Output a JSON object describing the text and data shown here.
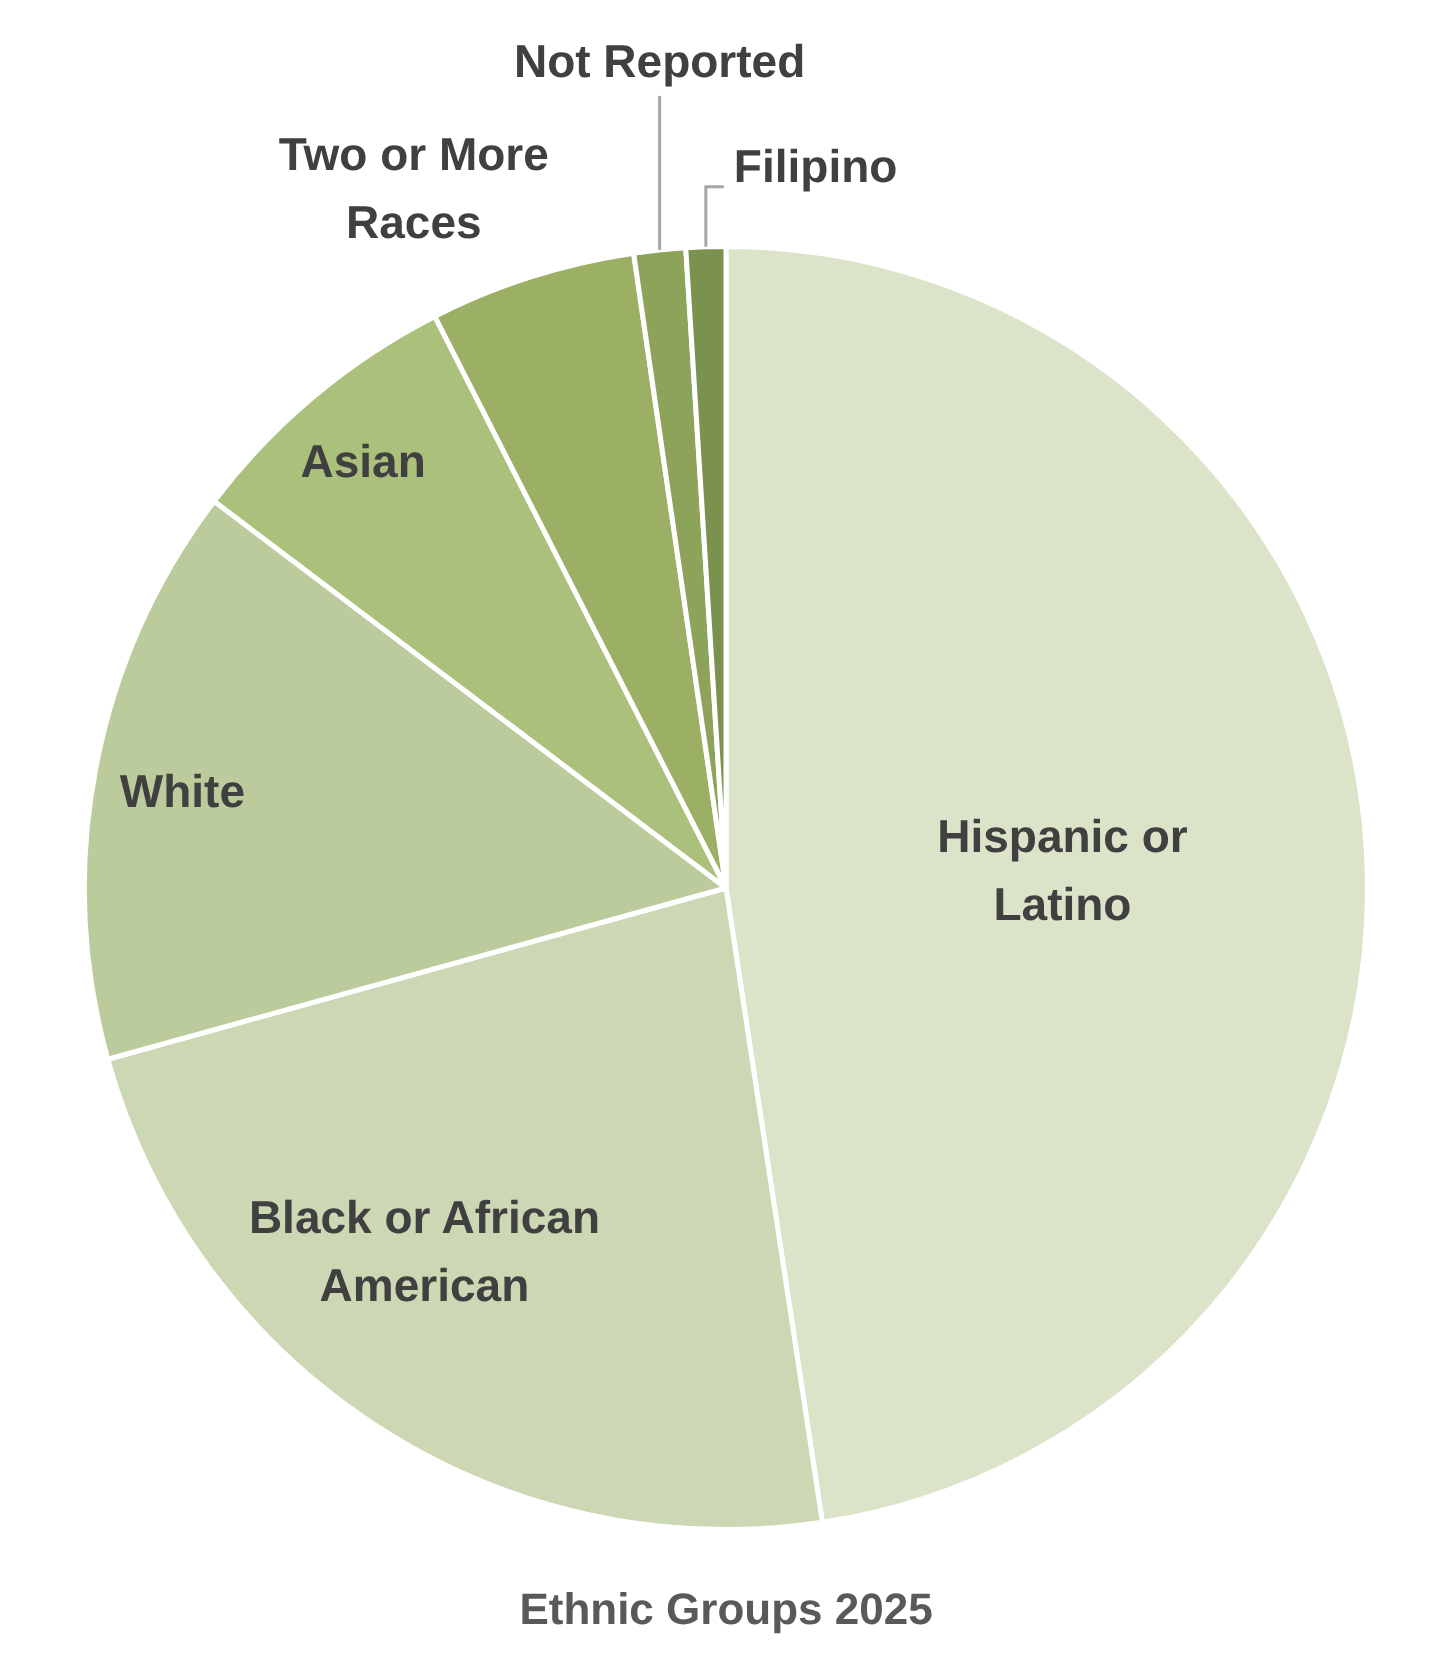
{
  "chart_data": {
    "type": "pie",
    "title": "Ethnic Groups 2025",
    "categories": [
      "Hispanic or Latino",
      "Black or African American",
      "White",
      "Asian",
      "Two or More Races",
      "Not Reported",
      "Filipino"
    ],
    "values": [
      47.6,
      23.1,
      14.6,
      7.2,
      5.2,
      1.3,
      1.0
    ],
    "colors": [
      "#dbe3c9",
      "#ccd7b3",
      "#bccb9b",
      "#aac07b",
      "#9bb065",
      "#8da35a",
      "#7b924e"
    ]
  }
}
